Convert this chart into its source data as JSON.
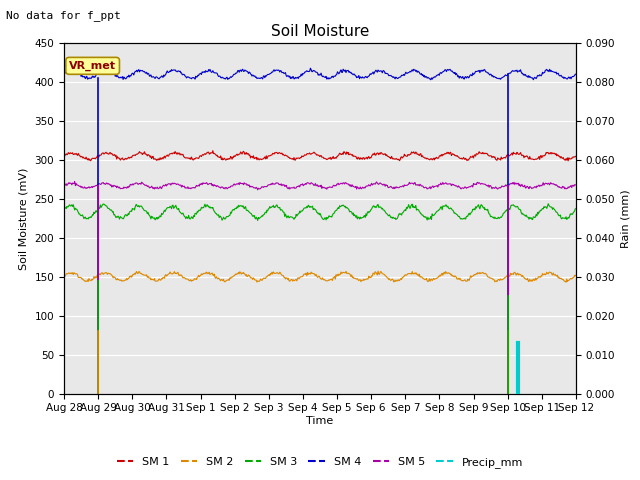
{
  "title": "Soil Moisture",
  "subtitle": "No data for f_ppt",
  "ylabel_left": "Soil Moisture (mV)",
  "ylabel_right": "Rain (mm)",
  "xlabel": "Time",
  "ylim_left": [
    0,
    450
  ],
  "ylim_right": [
    0,
    0.09
  ],
  "yticks_left": [
    0,
    50,
    100,
    150,
    200,
    250,
    300,
    350,
    400,
    450
  ],
  "yticks_right": [
    0.0,
    0.01,
    0.02,
    0.03,
    0.04,
    0.05,
    0.06,
    0.07,
    0.08,
    0.09
  ],
  "date_labels": [
    "Aug 28",
    "Aug 29",
    "Aug 30",
    "Aug 31",
    "Sep 1",
    "Sep 2",
    "Sep 3",
    "Sep 4",
    "Sep 5",
    "Sep 6",
    "Sep 7",
    "Sep 8",
    "Sep 9",
    "Sep 10",
    "Sep 11",
    "Sep 12"
  ],
  "sm1_mean": 305,
  "sm1_amp": 4,
  "sm2_mean": 150,
  "sm2_amp": 5,
  "sm3_mean": 233,
  "sm3_amp": 8,
  "sm4_mean": 410,
  "sm4_amp": 5,
  "sm5_mean": 267,
  "sm5_amp": 3,
  "sm1_color": "#cc0000",
  "sm2_color": "#dd8800",
  "sm3_color": "#00aa00",
  "sm4_color": "#0000cc",
  "sm5_color": "#aa00aa",
  "precip_color": "#00cccc",
  "background_color": "#e8e8e8",
  "grid_color": "#ffffff",
  "title_fontsize": 11,
  "label_fontsize": 8,
  "tick_fontsize": 7.5,
  "legend_fontsize": 8
}
